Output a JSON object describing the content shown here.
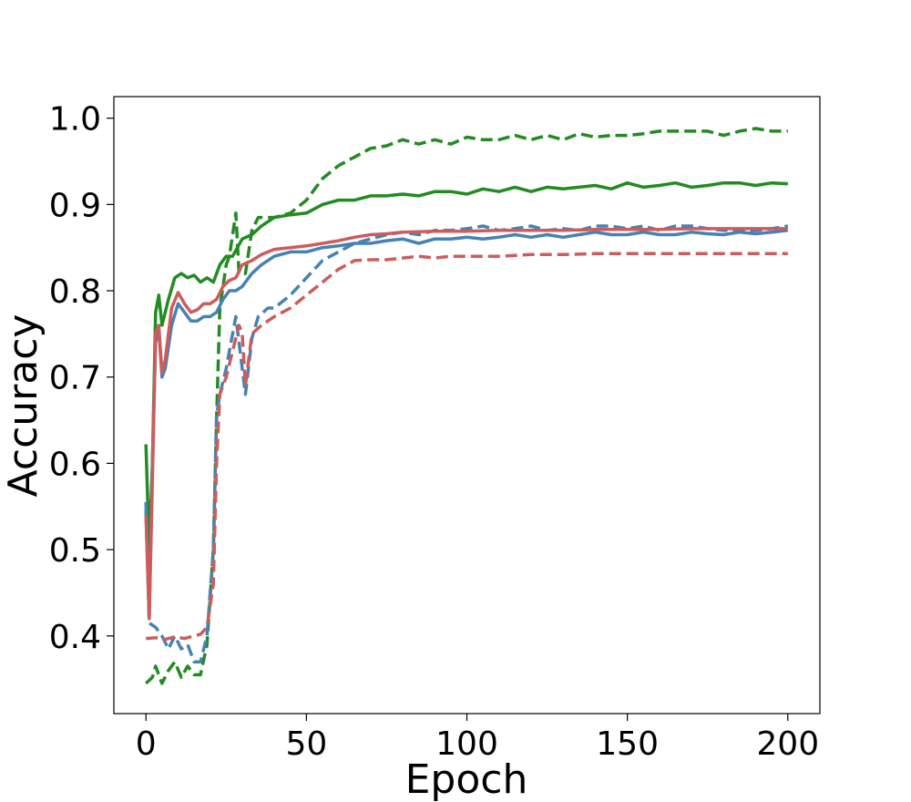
{
  "chart_data": {
    "type": "line",
    "title": "",
    "xlabel": "Epoch",
    "ylabel": "Accuracy",
    "xlim": [
      -10,
      210
    ],
    "ylim": [
      0.31,
      1.025
    ],
    "xticks": [
      0,
      50,
      100,
      150,
      200
    ],
    "yticks": [
      0.4,
      0.5,
      0.6,
      0.7,
      0.8,
      0.9,
      1.0
    ],
    "xtick_labels": [
      "0",
      "50",
      "100",
      "150",
      "200"
    ],
    "ytick_labels": [
      "0.4",
      "0.5",
      "0.6",
      "0.7",
      "0.8",
      "0.9",
      "1.0"
    ],
    "grid": false,
    "legend": "none",
    "series": [
      {
        "color": "#228B22",
        "style": "dashed",
        "points": [
          [
            0,
            0.345
          ],
          [
            2,
            0.352
          ],
          [
            3,
            0.365
          ],
          [
            5,
            0.345
          ],
          [
            7,
            0.36
          ],
          [
            9,
            0.37
          ],
          [
            11,
            0.352
          ],
          [
            13,
            0.365
          ],
          [
            15,
            0.355
          ],
          [
            17,
            0.355
          ],
          [
            19,
            0.39
          ],
          [
            21,
            0.5
          ],
          [
            22,
            0.65
          ],
          [
            23,
            0.78
          ],
          [
            25,
            0.83
          ],
          [
            26,
            0.84
          ],
          [
            28,
            0.89
          ],
          [
            29,
            0.82
          ],
          [
            31,
            0.82
          ],
          [
            33,
            0.87
          ],
          [
            35,
            0.885
          ],
          [
            40,
            0.885
          ],
          [
            45,
            0.89
          ],
          [
            50,
            0.905
          ],
          [
            55,
            0.93
          ],
          [
            60,
            0.945
          ],
          [
            65,
            0.955
          ],
          [
            70,
            0.965
          ],
          [
            75,
            0.968
          ],
          [
            80,
            0.975
          ],
          [
            85,
            0.97
          ],
          [
            90,
            0.975
          ],
          [
            95,
            0.97
          ],
          [
            100,
            0.978
          ],
          [
            105,
            0.975
          ],
          [
            110,
            0.975
          ],
          [
            115,
            0.98
          ],
          [
            120,
            0.975
          ],
          [
            125,
            0.98
          ],
          [
            130,
            0.975
          ],
          [
            135,
            0.982
          ],
          [
            140,
            0.978
          ],
          [
            145,
            0.98
          ],
          [
            150,
            0.98
          ],
          [
            155,
            0.982
          ],
          [
            160,
            0.985
          ],
          [
            165,
            0.985
          ],
          [
            170,
            0.985
          ],
          [
            175,
            0.985
          ],
          [
            180,
            0.98
          ],
          [
            185,
            0.985
          ],
          [
            190,
            0.988
          ],
          [
            195,
            0.985
          ],
          [
            200,
            0.985
          ]
        ]
      },
      {
        "color": "#228B22",
        "style": "solid",
        "points": [
          [
            0,
            0.622
          ],
          [
            1,
            0.5
          ],
          [
            2,
            0.6
          ],
          [
            3,
            0.775
          ],
          [
            4,
            0.795
          ],
          [
            5,
            0.76
          ],
          [
            7,
            0.79
          ],
          [
            9,
            0.815
          ],
          [
            11,
            0.82
          ],
          [
            13,
            0.815
          ],
          [
            15,
            0.818
          ],
          [
            17,
            0.81
          ],
          [
            19,
            0.815
          ],
          [
            21,
            0.81
          ],
          [
            23,
            0.83
          ],
          [
            25,
            0.84
          ],
          [
            27,
            0.84
          ],
          [
            30,
            0.86
          ],
          [
            33,
            0.865
          ],
          [
            36,
            0.875
          ],
          [
            40,
            0.885
          ],
          [
            45,
            0.888
          ],
          [
            50,
            0.89
          ],
          [
            55,
            0.9
          ],
          [
            60,
            0.905
          ],
          [
            65,
            0.905
          ],
          [
            70,
            0.91
          ],
          [
            75,
            0.91
          ],
          [
            80,
            0.912
          ],
          [
            85,
            0.91
          ],
          [
            90,
            0.915
          ],
          [
            95,
            0.915
          ],
          [
            100,
            0.912
          ],
          [
            105,
            0.918
          ],
          [
            110,
            0.915
          ],
          [
            115,
            0.92
          ],
          [
            120,
            0.915
          ],
          [
            125,
            0.92
          ],
          [
            130,
            0.918
          ],
          [
            135,
            0.92
          ],
          [
            140,
            0.922
          ],
          [
            145,
            0.918
          ],
          [
            150,
            0.925
          ],
          [
            155,
            0.92
          ],
          [
            160,
            0.922
          ],
          [
            165,
            0.925
          ],
          [
            170,
            0.92
          ],
          [
            175,
            0.922
          ],
          [
            180,
            0.925
          ],
          [
            185,
            0.925
          ],
          [
            190,
            0.922
          ],
          [
            195,
            0.925
          ],
          [
            200,
            0.924
          ]
        ]
      },
      {
        "color": "#4682B4",
        "style": "dashed",
        "points": [
          [
            0,
            0.555
          ],
          [
            1,
            0.415
          ],
          [
            3,
            0.41
          ],
          [
            5,
            0.4
          ],
          [
            7,
            0.385
          ],
          [
            9,
            0.4
          ],
          [
            11,
            0.385
          ],
          [
            13,
            0.39
          ],
          [
            15,
            0.37
          ],
          [
            17,
            0.37
          ],
          [
            19,
            0.4
          ],
          [
            21,
            0.5
          ],
          [
            22,
            0.655
          ],
          [
            23,
            0.68
          ],
          [
            25,
            0.71
          ],
          [
            27,
            0.75
          ],
          [
            28,
            0.77
          ],
          [
            29,
            0.74
          ],
          [
            31,
            0.68
          ],
          [
            33,
            0.745
          ],
          [
            35,
            0.77
          ],
          [
            38,
            0.78
          ],
          [
            40,
            0.78
          ],
          [
            45,
            0.795
          ],
          [
            50,
            0.815
          ],
          [
            55,
            0.835
          ],
          [
            60,
            0.845
          ],
          [
            65,
            0.855
          ],
          [
            70,
            0.86
          ],
          [
            75,
            0.865
          ],
          [
            80,
            0.868
          ],
          [
            85,
            0.865
          ],
          [
            90,
            0.87
          ],
          [
            95,
            0.87
          ],
          [
            100,
            0.872
          ],
          [
            105,
            0.875
          ],
          [
            110,
            0.87
          ],
          [
            115,
            0.872
          ],
          [
            120,
            0.875
          ],
          [
            125,
            0.87
          ],
          [
            130,
            0.872
          ],
          [
            135,
            0.87
          ],
          [
            140,
            0.875
          ],
          [
            145,
            0.875
          ],
          [
            150,
            0.872
          ],
          [
            155,
            0.875
          ],
          [
            160,
            0.87
          ],
          [
            165,
            0.875
          ],
          [
            170,
            0.875
          ],
          [
            175,
            0.872
          ],
          [
            180,
            0.87
          ],
          [
            185,
            0.87
          ],
          [
            190,
            0.87
          ],
          [
            195,
            0.872
          ],
          [
            200,
            0.875
          ]
        ]
      },
      {
        "color": "#4682B4",
        "style": "solid",
        "points": [
          [
            0,
            0.545
          ],
          [
            1,
            0.42
          ],
          [
            2,
            0.6
          ],
          [
            3,
            0.74
          ],
          [
            4,
            0.755
          ],
          [
            5,
            0.7
          ],
          [
            6,
            0.71
          ],
          [
            8,
            0.76
          ],
          [
            10,
            0.785
          ],
          [
            12,
            0.775
          ],
          [
            14,
            0.765
          ],
          [
            16,
            0.765
          ],
          [
            18,
            0.77
          ],
          [
            20,
            0.77
          ],
          [
            22,
            0.775
          ],
          [
            24,
            0.79
          ],
          [
            26,
            0.8
          ],
          [
            28,
            0.8
          ],
          [
            30,
            0.805
          ],
          [
            33,
            0.82
          ],
          [
            36,
            0.83
          ],
          [
            40,
            0.84
          ],
          [
            45,
            0.845
          ],
          [
            50,
            0.845
          ],
          [
            55,
            0.85
          ],
          [
            60,
            0.852
          ],
          [
            65,
            0.855
          ],
          [
            70,
            0.855
          ],
          [
            75,
            0.858
          ],
          [
            80,
            0.86
          ],
          [
            85,
            0.855
          ],
          [
            90,
            0.86
          ],
          [
            95,
            0.86
          ],
          [
            100,
            0.862
          ],
          [
            105,
            0.86
          ],
          [
            110,
            0.862
          ],
          [
            115,
            0.865
          ],
          [
            120,
            0.862
          ],
          [
            125,
            0.865
          ],
          [
            130,
            0.862
          ],
          [
            135,
            0.865
          ],
          [
            140,
            0.868
          ],
          [
            145,
            0.865
          ],
          [
            150,
            0.865
          ],
          [
            155,
            0.868
          ],
          [
            160,
            0.865
          ],
          [
            165,
            0.865
          ],
          [
            170,
            0.868
          ],
          [
            175,
            0.866
          ],
          [
            180,
            0.865
          ],
          [
            185,
            0.868
          ],
          [
            190,
            0.866
          ],
          [
            195,
            0.868
          ],
          [
            200,
            0.87
          ]
        ]
      },
      {
        "color": "#CD5C5C",
        "style": "dashed",
        "points": [
          [
            0,
            0.397
          ],
          [
            3,
            0.398
          ],
          [
            6,
            0.396
          ],
          [
            9,
            0.399
          ],
          [
            12,
            0.397
          ],
          [
            15,
            0.4
          ],
          [
            17,
            0.402
          ],
          [
            19,
            0.41
          ],
          [
            21,
            0.46
          ],
          [
            22,
            0.6
          ],
          [
            23,
            0.68
          ],
          [
            25,
            0.7
          ],
          [
            27,
            0.73
          ],
          [
            29,
            0.76
          ],
          [
            30,
            0.75
          ],
          [
            31,
            0.69
          ],
          [
            33,
            0.75
          ],
          [
            36,
            0.76
          ],
          [
            40,
            0.77
          ],
          [
            45,
            0.78
          ],
          [
            50,
            0.795
          ],
          [
            55,
            0.81
          ],
          [
            60,
            0.825
          ],
          [
            65,
            0.835
          ],
          [
            70,
            0.836
          ],
          [
            75,
            0.836
          ],
          [
            80,
            0.838
          ],
          [
            85,
            0.84
          ],
          [
            90,
            0.838
          ],
          [
            95,
            0.84
          ],
          [
            100,
            0.84
          ],
          [
            110,
            0.84
          ],
          [
            120,
            0.842
          ],
          [
            130,
            0.842
          ],
          [
            140,
            0.843
          ],
          [
            150,
            0.843
          ],
          [
            160,
            0.843
          ],
          [
            170,
            0.843
          ],
          [
            180,
            0.843
          ],
          [
            190,
            0.843
          ],
          [
            200,
            0.843
          ]
        ]
      },
      {
        "color": "#CD5C5C",
        "style": "solid",
        "points": [
          [
            0,
            0.54
          ],
          [
            1,
            0.42
          ],
          [
            2,
            0.58
          ],
          [
            3,
            0.75
          ],
          [
            4,
            0.76
          ],
          [
            5,
            0.705
          ],
          [
            6,
            0.72
          ],
          [
            8,
            0.78
          ],
          [
            10,
            0.798
          ],
          [
            12,
            0.785
          ],
          [
            14,
            0.775
          ],
          [
            16,
            0.778
          ],
          [
            18,
            0.785
          ],
          [
            20,
            0.785
          ],
          [
            22,
            0.79
          ],
          [
            24,
            0.805
          ],
          [
            26,
            0.812
          ],
          [
            28,
            0.815
          ],
          [
            30,
            0.83
          ],
          [
            33,
            0.835
          ],
          [
            36,
            0.842
          ],
          [
            40,
            0.848
          ],
          [
            45,
            0.85
          ],
          [
            50,
            0.852
          ],
          [
            55,
            0.855
          ],
          [
            60,
            0.858
          ],
          [
            65,
            0.862
          ],
          [
            70,
            0.865
          ],
          [
            75,
            0.866
          ],
          [
            80,
            0.868
          ],
          [
            90,
            0.869
          ],
          [
            100,
            0.869
          ],
          [
            110,
            0.87
          ],
          [
            120,
            0.87
          ],
          [
            130,
            0.87
          ],
          [
            140,
            0.871
          ],
          [
            150,
            0.871
          ],
          [
            160,
            0.871
          ],
          [
            170,
            0.872
          ],
          [
            180,
            0.872
          ],
          [
            190,
            0.872
          ],
          [
            200,
            0.872
          ]
        ]
      }
    ]
  }
}
